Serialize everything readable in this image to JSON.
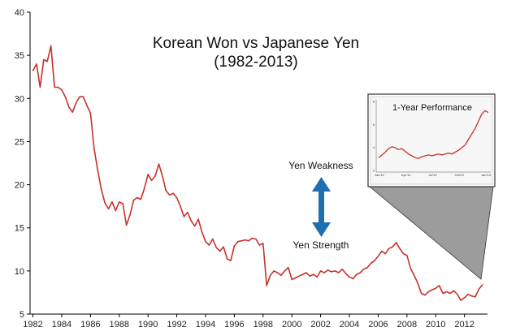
{
  "chart_data": {
    "type": "line",
    "title": "Korean Won vs Japanese Yen",
    "subtitle": "(1982-2013)",
    "ylim": [
      5,
      40
    ],
    "yticks": [
      5,
      10,
      15,
      20,
      25,
      30,
      35,
      40
    ],
    "xlim": [
      1981.8,
      2013.6
    ],
    "xticks": [
      "1982",
      "1984",
      "1986",
      "1988",
      "1990",
      "1992",
      "1994",
      "1996",
      "1998",
      "2000",
      "2002",
      "2004",
      "2006",
      "2008",
      "2010",
      "2012"
    ],
    "line_color": "#c8312a",
    "series": [
      {
        "x": [
          1982.0,
          1982.25,
          1982.5,
          1982.75,
          1983.0,
          1983.25,
          1983.5,
          1983.75,
          1984.0,
          1984.25,
          1984.5,
          1984.75,
          1985.0,
          1985.25,
          1985.5,
          1985.75,
          1986.0,
          1986.25,
          1986.5,
          1986.75,
          1987.0,
          1987.25,
          1987.5,
          1987.75,
          1988.0,
          1988.25,
          1988.5,
          1988.75,
          1989.0,
          1989.25,
          1989.5,
          1989.75,
          1990.0,
          1990.25,
          1990.5,
          1990.75,
          1991.0,
          1991.25,
          1991.5,
          1991.75,
          1992.0,
          1992.25,
          1992.5,
          1992.75,
          1993.0,
          1993.25,
          1993.5,
          1993.75,
          1994.0,
          1994.25,
          1994.5,
          1994.75,
          1995.0,
          1995.25,
          1995.5,
          1995.75,
          1996.0,
          1996.25,
          1996.5,
          1996.75,
          1997.0,
          1997.25,
          1997.5,
          1997.75,
          1998.0,
          1998.25,
          1998.5,
          1998.75,
          1999.0,
          1999.25,
          1999.5,
          1999.75,
          2000.0,
          2000.25,
          2000.5,
          2000.75,
          2001.0,
          2001.25,
          2001.5,
          2001.75,
          2002.0,
          2002.25,
          2002.5,
          2002.75,
          2003.0,
          2003.25,
          2003.5,
          2003.75,
          2004.0,
          2004.25,
          2004.5,
          2004.75,
          2005.0,
          2005.25,
          2005.5,
          2005.75,
          2006.0,
          2006.25,
          2006.5,
          2006.75,
          2007.0,
          2007.25,
          2007.5,
          2007.75,
          2008.0,
          2008.25,
          2008.5,
          2008.75,
          2009.0,
          2009.25,
          2009.5,
          2009.75,
          2010.0,
          2010.25,
          2010.5,
          2010.75,
          2011.0,
          2011.25,
          2011.5,
          2011.75,
          2012.0,
          2012.25,
          2012.5,
          2012.75,
          2013.0,
          2013.25
        ],
        "values": [
          33.2,
          34.0,
          31.3,
          34.5,
          34.3,
          36.1,
          31.3,
          31.3,
          31.0,
          30.2,
          29.0,
          28.4,
          29.5,
          30.2,
          30.2,
          29.2,
          28.3,
          24.2,
          21.7,
          19.5,
          17.9,
          17.2,
          18.0,
          17.0,
          18.0,
          17.8,
          15.3,
          16.5,
          18.2,
          18.5,
          18.3,
          19.6,
          21.2,
          20.5,
          21.0,
          22.4,
          21.0,
          19.3,
          18.8,
          19.0,
          18.5,
          17.5,
          16.3,
          16.8,
          15.8,
          15.2,
          16.0,
          14.5,
          13.4,
          13.0,
          13.7,
          12.7,
          12.3,
          12.8,
          11.4,
          11.2,
          12.9,
          13.4,
          13.5,
          13.6,
          13.5,
          13.8,
          13.7,
          13.0,
          13.2,
          8.3,
          9.5,
          10.0,
          9.8,
          9.5,
          10.0,
          10.4,
          9.0,
          9.2,
          9.4,
          9.6,
          9.8,
          9.4,
          9.6,
          9.3,
          10.0,
          9.8,
          10.1,
          9.9,
          10.0,
          9.8,
          10.2,
          9.7,
          9.3,
          9.1,
          9.6,
          9.8,
          10.2,
          10.4,
          10.9,
          11.2,
          11.7,
          12.3,
          12.0,
          12.6,
          12.8,
          13.3,
          12.6,
          12.0,
          11.8,
          10.3,
          9.5,
          8.6,
          7.4,
          7.2,
          7.6,
          7.8,
          8.0,
          8.3,
          7.4,
          7.6,
          7.4,
          7.7,
          7.3,
          6.6,
          6.9,
          7.3,
          7.1,
          7.0,
          7.9,
          8.4
        ]
      }
    ],
    "annotations": {
      "weakness_label": "Yen Weakness",
      "strength_label": "Yen Strength",
      "arrow_color": "#1f6fb0"
    },
    "inset": {
      "title": "1-Year Performance",
      "xticks": [
        "Jan'12",
        "Apr'12",
        "Jul'12",
        "Oct'12",
        "Jan'13"
      ],
      "yticks": [
        "8",
        "6",
        "4",
        "2"
      ],
      "fill_color": "#9c9c9c",
      "values": [
        1.6,
        1.9,
        2.2,
        2.6,
        2.8,
        2.7,
        2.5,
        2.6,
        2.3,
        2.0,
        1.8,
        1.6,
        1.5,
        1.7,
        1.8,
        1.9,
        1.8,
        1.9,
        2.0,
        1.9,
        2.0,
        2.1,
        2.0,
        2.2,
        2.4,
        2.7,
        3.0,
        3.6,
        4.2,
        4.8,
        5.6,
        6.4,
        6.8,
        6.6
      ]
    }
  }
}
